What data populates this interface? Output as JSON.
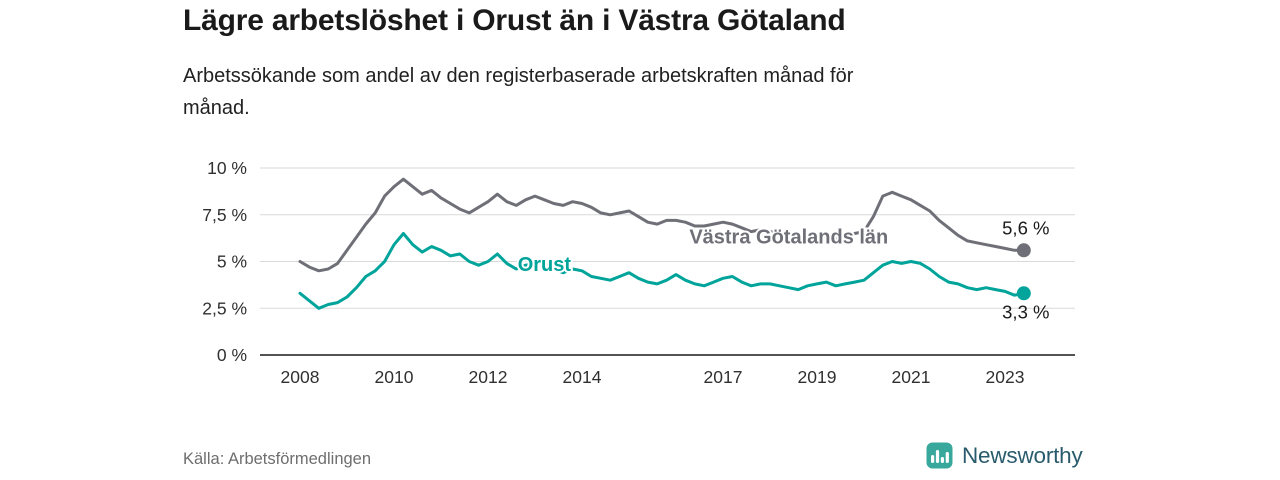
{
  "header": {
    "title": "Lägre arbetslöshet i Orust än i Västra Götaland",
    "subtitle": "Arbetssökande som andel av den registerbaserade arbetskraften månad för månad.",
    "subtitle_line1": "Arbetssökande som andel av den registerbaserade arbetskraften månad för",
    "subtitle_line2": "månad."
  },
  "chart_data": {
    "type": "line",
    "title": "Lägre arbetslöshet i Orust än i Västra Götaland",
    "x_unit": "decimal year (monthly observations)",
    "y_unit": "percent of registered labour force",
    "xlim": [
      2007.15,
      2024.49
    ],
    "ylim": [
      0,
      10
    ],
    "grid": "horizontal",
    "legend": "inline labels on lines",
    "y_ticks": [
      {
        "value": 0,
        "label": "0 %"
      },
      {
        "value": 2.5,
        "label": "2,5 %"
      },
      {
        "value": 5,
        "label": "5 %"
      },
      {
        "value": 7.5,
        "label": "7,5 %"
      },
      {
        "value": 10,
        "label": "10 %"
      }
    ],
    "x_ticks": [
      {
        "value": 2008,
        "label": "2008"
      },
      {
        "value": 2010,
        "label": "2010"
      },
      {
        "value": 2012,
        "label": "2012"
      },
      {
        "value": 2014,
        "label": "2014"
      },
      {
        "value": 2017,
        "label": "2017"
      },
      {
        "value": 2019,
        "label": "2019"
      },
      {
        "value": 2021,
        "label": "2021"
      },
      {
        "value": 2023,
        "label": "2023"
      }
    ],
    "x": [
      2008,
      2008.2,
      2008.4,
      2008.6,
      2008.8,
      2009,
      2009.2,
      2009.4,
      2009.6,
      2009.8,
      2010,
      2010.2,
      2010.4,
      2010.6,
      2010.8,
      2011,
      2011.2,
      2011.4,
      2011.6,
      2011.8,
      2012,
      2012.2,
      2012.4,
      2012.6,
      2012.8,
      2013,
      2013.2,
      2013.4,
      2013.6,
      2013.8,
      2014,
      2014.2,
      2014.4,
      2014.6,
      2014.8,
      2015,
      2015.2,
      2015.4,
      2015.6,
      2015.8,
      2016,
      2016.2,
      2016.4,
      2016.6,
      2016.8,
      2017,
      2017.2,
      2017.4,
      2017.6,
      2017.8,
      2018,
      2018.2,
      2018.4,
      2018.6,
      2018.8,
      2019,
      2019.2,
      2019.4,
      2019.6,
      2019.8,
      2020,
      2020.2,
      2020.4,
      2020.6,
      2020.8,
      2021,
      2021.2,
      2021.4,
      2021.6,
      2021.8,
      2022,
      2022.2,
      2022.4,
      2022.6,
      2022.8,
      2023,
      2023.2,
      2023.4
    ],
    "series": [
      {
        "name": "Västra Götalands län",
        "color": "#6f6f78",
        "end_label": "5,6 %",
        "end_value": 5.6,
        "label_at": [
          2018.4,
          5.95
        ],
        "values": [
          5.0,
          4.7,
          4.5,
          4.6,
          4.9,
          5.6,
          6.3,
          7.0,
          7.6,
          8.5,
          9.0,
          9.4,
          9.0,
          8.6,
          8.8,
          8.4,
          8.1,
          7.8,
          7.6,
          7.9,
          8.2,
          8.6,
          8.2,
          8.0,
          8.3,
          8.5,
          8.3,
          8.1,
          8.0,
          8.2,
          8.1,
          7.9,
          7.6,
          7.5,
          7.6,
          7.7,
          7.4,
          7.1,
          7.0,
          7.2,
          7.2,
          7.1,
          6.9,
          6.9,
          7.0,
          7.1,
          7.0,
          6.8,
          6.6,
          6.7,
          6.6,
          6.5,
          6.3,
          6.3,
          6.4,
          6.4,
          6.3,
          6.2,
          6.3,
          6.5,
          6.6,
          7.4,
          8.5,
          8.7,
          8.5,
          8.3,
          8.0,
          7.7,
          7.2,
          6.8,
          6.4,
          6.1,
          6.0,
          5.9,
          5.8,
          5.7,
          5.6,
          5.6
        ]
      },
      {
        "name": "Orust",
        "color": "#00a49a",
        "end_label": "3,3 %",
        "end_value": 3.3,
        "label_at": [
          2013.2,
          4.5
        ],
        "values": [
          3.3,
          2.9,
          2.5,
          2.7,
          2.8,
          3.1,
          3.6,
          4.2,
          4.5,
          5.0,
          5.9,
          6.5,
          5.9,
          5.5,
          5.8,
          5.6,
          5.3,
          5.4,
          5.0,
          4.8,
          5.0,
          5.4,
          4.9,
          4.6,
          4.8,
          4.9,
          5.0,
          4.6,
          4.4,
          4.6,
          4.5,
          4.2,
          4.1,
          4.0,
          4.2,
          4.4,
          4.1,
          3.9,
          3.8,
          4.0,
          4.3,
          4.0,
          3.8,
          3.7,
          3.9,
          4.1,
          4.2,
          3.9,
          3.7,
          3.8,
          3.8,
          3.7,
          3.6,
          3.5,
          3.7,
          3.8,
          3.9,
          3.7,
          3.8,
          3.9,
          4.0,
          4.4,
          4.8,
          5.0,
          4.9,
          5.0,
          4.9,
          4.6,
          4.2,
          3.9,
          3.8,
          3.6,
          3.5,
          3.6,
          3.5,
          3.4,
          3.2,
          3.3
        ]
      }
    ]
  },
  "footer": {
    "source": "Källa: Arbetsförmedlingen",
    "brand": "Newsworthy",
    "brand_text_color": "#2a5b6d",
    "brand_icon_color": "#38a89d"
  }
}
